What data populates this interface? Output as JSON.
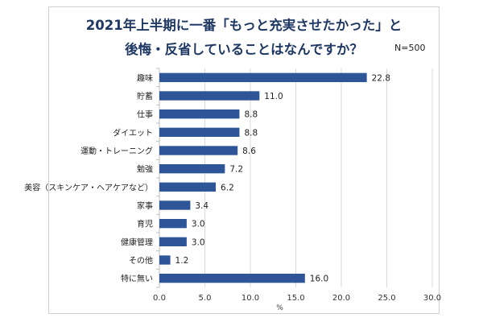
{
  "chart_data": {
    "type": "bar",
    "orientation": "horizontal",
    "title_lines": [
      "2021年上半期に一番「もっと充実させたかった」と",
      "後悔・反省していることはなんですか？"
    ],
    "sample_note": "N=500",
    "categories": [
      "趣味",
      "貯蓄",
      "仕事",
      "ダイエット",
      "運動・トレーニング",
      "勉強",
      "美容（スキンケア・ヘアケアなど）",
      "家事",
      "育児",
      "健康管理",
      "その他",
      "特に無い"
    ],
    "values": [
      22.8,
      11.0,
      8.8,
      8.8,
      8.6,
      7.2,
      6.2,
      3.4,
      3.0,
      3.0,
      1.2,
      16.0
    ],
    "value_labels": [
      "22.8",
      "11.0",
      "8.8",
      "8.8",
      "8.6",
      "7.2",
      "6.2",
      "3.4",
      "3.0",
      "3.0",
      "1.2",
      "16.0"
    ],
    "xlim": [
      0,
      30
    ],
    "xticks": [
      0,
      5,
      10,
      15,
      20,
      25,
      30
    ],
    "xtick_labels": [
      "0.0",
      "5.0",
      "10.0",
      "15.0",
      "20.0",
      "25.0",
      "30.0"
    ],
    "xlabel": "%",
    "grid": true,
    "bar_color": "#2e5597",
    "title_color": "#1f3864"
  }
}
